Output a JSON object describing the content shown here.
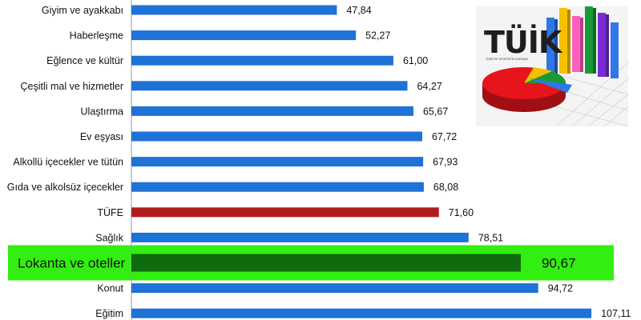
{
  "chart_data": {
    "type": "bar",
    "orientation": "horizontal",
    "categories": [
      "Giyim ve ayakkabı",
      "Haberleşme",
      "Eğlence ve kültür",
      "Çeşitli mal ve hizmetler",
      "Ulaştırma",
      "Ev eşyası",
      "Alkollü içecekler ve tütün",
      "Gıda ve alkolsüz içecekler",
      "TÜFE",
      "Sağlık",
      "Lokanta ve oteller",
      "Konut",
      "Eğitim"
    ],
    "values": [
      47.84,
      52.27,
      61.0,
      64.27,
      65.67,
      67.72,
      67.93,
      68.08,
      71.6,
      78.51,
      90.67,
      94.72,
      107.11
    ],
    "value_labels": [
      "47,84",
      "52,27",
      "61,00",
      "64,27",
      "65,67",
      "67,72",
      "67,93",
      "68,08",
      "71,60",
      "78,51",
      "90,67",
      "94,72",
      "107,11"
    ],
    "highlighted": [
      "TÜFE",
      "Lokanta ve oteller"
    ],
    "colors": {
      "default_bar": "#1f72d6",
      "tufe_bar": "#b01c1c",
      "highlight_bar": "#0e6b0e",
      "highlight_band": "#33ee11",
      "axis_line": "#9a9a9a"
    },
    "title": "",
    "xlabel": "",
    "ylabel": "",
    "xlim": [
      0,
      110
    ],
    "grid": false,
    "legend": "none"
  },
  "logo": {
    "text": "TÜİK",
    "subtext": "TÜRKİYE İSTATİSTİK KURUMU",
    "image_colors": [
      "#e8141b",
      "#f5c000",
      "#1a9a36",
      "#2d78e6",
      "#ff5fbf",
      "#7a2bd6"
    ]
  }
}
